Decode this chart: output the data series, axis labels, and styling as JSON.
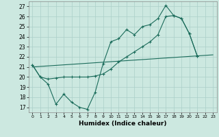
{
  "xlabel": "Humidex (Indice chaleur)",
  "bg_color": "#cce8e0",
  "grid_color": "#aacfc8",
  "line_color": "#1a6b5a",
  "xlim": [
    -0.5,
    23.5
  ],
  "ylim": [
    16.5,
    27.5
  ],
  "xticks": [
    0,
    1,
    2,
    3,
    4,
    5,
    6,
    7,
    8,
    9,
    10,
    11,
    12,
    13,
    14,
    15,
    16,
    17,
    18,
    19,
    20,
    21,
    22,
    23
  ],
  "yticks": [
    17,
    18,
    19,
    20,
    21,
    22,
    23,
    24,
    25,
    26,
    27
  ],
  "line1_x": [
    0,
    1,
    2,
    3,
    4,
    5,
    6,
    7,
    8,
    9,
    10,
    11,
    12,
    13,
    14,
    15,
    16,
    17,
    18,
    19,
    20,
    21
  ],
  "line1_y": [
    21.2,
    20.0,
    19.3,
    17.3,
    18.3,
    17.5,
    17.0,
    16.8,
    18.5,
    21.3,
    23.5,
    23.8,
    24.7,
    24.2,
    25.0,
    25.2,
    25.8,
    27.1,
    26.1,
    25.8,
    24.3,
    22.1
  ],
  "line2_x": [
    0,
    1,
    2,
    3,
    4,
    5,
    6,
    7,
    8,
    9,
    10,
    11,
    12,
    13,
    14,
    15,
    16,
    17,
    18,
    19,
    20,
    21
  ],
  "line2_y": [
    21.2,
    20.0,
    19.8,
    19.9,
    20.0,
    20.0,
    20.0,
    20.0,
    20.1,
    20.3,
    20.8,
    21.5,
    22.0,
    22.5,
    23.0,
    23.5,
    24.2,
    26.0,
    26.1,
    25.8,
    24.3,
    22.1
  ],
  "line3_x": [
    0,
    23
  ],
  "line3_y": [
    21.0,
    22.2
  ]
}
